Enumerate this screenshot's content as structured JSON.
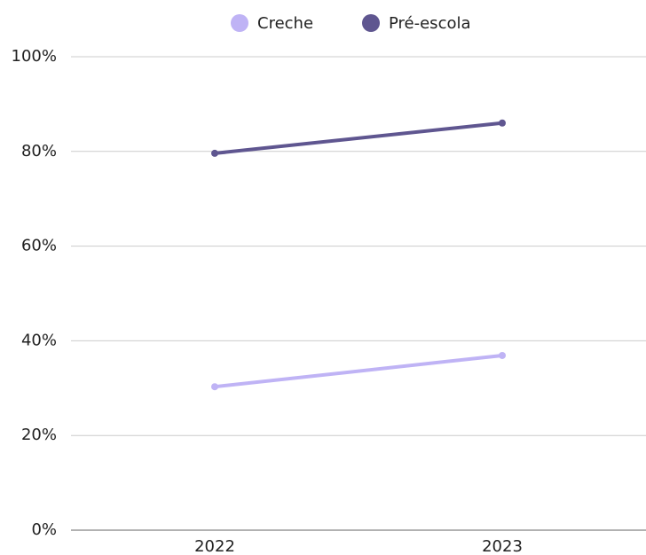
{
  "chart_data": {
    "type": "line",
    "categories": [
      "2022",
      "2023"
    ],
    "series": [
      {
        "name": "Creche",
        "color": "#bfb3f5",
        "values": [
          30.3,
          36.9
        ]
      },
      {
        "name": "Pré-escola",
        "color": "#5f5690",
        "values": [
          79.6,
          86.0
        ]
      }
    ],
    "ylim": [
      0,
      100
    ],
    "yticks": [
      {
        "value": 0,
        "label": "0%"
      },
      {
        "value": 20,
        "label": "20%"
      },
      {
        "value": 40,
        "label": "40%"
      },
      {
        "value": 60,
        "label": "60%"
      },
      {
        "value": 80,
        "label": "80%"
      },
      {
        "value": 100,
        "label": "100%"
      }
    ],
    "grid": true,
    "legend": "top"
  }
}
